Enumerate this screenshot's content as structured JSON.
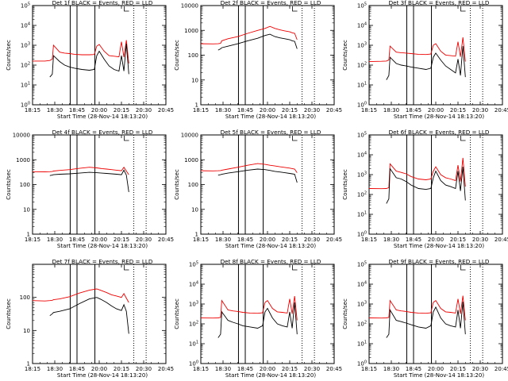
{
  "colors": {
    "events": "#000000",
    "lld": "#ee0000",
    "axes": "#000000",
    "background": "#ffffff"
  },
  "common": {
    "xlabel": "Start Time (28-Nov-14 18:13:20)",
    "ylabel": "Counts/sec",
    "x_ticks": [
      "18:15",
      "18:30",
      "18:45",
      "20:00",
      "20:15",
      "20:30",
      "20:45"
    ]
  },
  "chart_data": [
    {
      "type": "line",
      "title": "Det 1f  BLACK = Events, RED = LLD",
      "yscale": "log",
      "ylim": [
        1,
        100000
      ],
      "y_tick_labels": [
        "10^0",
        "10^1",
        "10^2",
        "10^3",
        "10^4",
        "10^5"
      ],
      "xlim": [
        0,
        108
      ],
      "x": [
        0,
        10,
        14,
        16,
        17,
        22,
        26,
        30,
        34,
        40,
        46,
        50,
        52,
        54,
        58,
        62,
        66,
        70,
        72,
        74,
        76,
        78
      ],
      "series": [
        {
          "name": "BLACK = Events",
          "values": [
            null,
            null,
            25,
            35,
            300,
            150,
            100,
            80,
            70,
            60,
            55,
            60,
            300,
            500,
            200,
            90,
            60,
            50,
            300,
            50,
            1200,
            35
          ]
        },
        {
          "name": "RED = LLD",
          "values": [
            160,
            160,
            170,
            200,
            1000,
            450,
            400,
            380,
            350,
            330,
            330,
            340,
            900,
            1100,
            500,
            300,
            280,
            260,
            1500,
            250,
            1800,
            120
          ]
        }
      ]
    },
    {
      "type": "line",
      "title": "Det 2f  BLACK = Events, RED = LLD",
      "yscale": "log",
      "ylim": [
        1,
        10000
      ],
      "y_tick_labels": [
        "1",
        "10",
        "100",
        "1000",
        "10000"
      ],
      "xlim": [
        0,
        108
      ],
      "x": [
        0,
        10,
        14,
        16,
        17,
        22,
        30,
        38,
        46,
        52,
        56,
        60,
        64,
        68,
        72,
        74,
        76,
        78
      ],
      "series": [
        {
          "name": "BLACK = Events",
          "values": [
            null,
            null,
            160,
            180,
            200,
            230,
            290,
            380,
            480,
            620,
            700,
            560,
            500,
            460,
            420,
            380,
            360,
            180
          ]
        },
        {
          "name": "RED = LLD",
          "values": [
            290,
            285,
            290,
            300,
            380,
            460,
            560,
            760,
            1000,
            1200,
            1450,
            1200,
            1050,
            950,
            870,
            800,
            760,
            420
          ]
        }
      ]
    },
    {
      "type": "line",
      "title": "Det 3f  BLACK = Events, RED = LLD",
      "yscale": "log",
      "ylim": [
        1,
        100000
      ],
      "y_tick_labels": [
        "10^0",
        "10^1",
        "10^2",
        "10^3",
        "10^4",
        "10^5"
      ],
      "xlim": [
        0,
        108
      ],
      "x": [
        0,
        10,
        14,
        16,
        17,
        22,
        26,
        30,
        34,
        40,
        46,
        50,
        52,
        54,
        58,
        62,
        66,
        70,
        72,
        74,
        76,
        78
      ],
      "series": [
        {
          "name": "BLACK = Events",
          "values": [
            null,
            null,
            18,
            30,
            250,
            120,
            100,
            90,
            80,
            70,
            60,
            70,
            250,
            400,
            180,
            90,
            60,
            40,
            200,
            30,
            900,
            25
          ]
        },
        {
          "name": "RED = LLD",
          "values": [
            150,
            155,
            160,
            180,
            900,
            450,
            420,
            400,
            380,
            350,
            340,
            360,
            1000,
            1200,
            500,
            320,
            300,
            280,
            1500,
            260,
            2500,
            150
          ]
        }
      ]
    },
    {
      "type": "line",
      "title": "Det 4f  BLACK = Events, RED = LLD",
      "yscale": "log",
      "ylim": [
        1,
        10000
      ],
      "y_tick_labels": [
        "1",
        "10",
        "100",
        "1000",
        "10000"
      ],
      "xlim": [
        0,
        108
      ],
      "x": [
        0,
        10,
        14,
        16,
        17,
        22,
        30,
        38,
        46,
        52,
        56,
        60,
        64,
        68,
        72,
        74,
        76,
        78
      ],
      "series": [
        {
          "name": "BLACK = Events",
          "values": [
            null,
            null,
            230,
            240,
            250,
            260,
            270,
            290,
            310,
            300,
            290,
            280,
            270,
            260,
            250,
            380,
            240,
            50
          ]
        },
        {
          "name": "RED = LLD",
          "values": [
            330,
            325,
            330,
            335,
            350,
            370,
            400,
            450,
            500,
            470,
            440,
            420,
            400,
            380,
            360,
            500,
            350,
            250
          ]
        }
      ]
    },
    {
      "type": "line",
      "title": "Det 5f  BLACK = Events, RED = LLD",
      "yscale": "log",
      "ylim": [
        1,
        10000
      ],
      "y_tick_labels": [
        "1",
        "10",
        "100",
        "1000",
        "10000"
      ],
      "xlim": [
        0,
        108
      ],
      "x": [
        0,
        10,
        14,
        16,
        17,
        22,
        30,
        38,
        46,
        52,
        56,
        60,
        64,
        68,
        72,
        74,
        76,
        78
      ],
      "series": [
        {
          "name": "BLACK = Events",
          "values": [
            null,
            null,
            240,
            250,
            260,
            290,
            330,
            380,
            420,
            400,
            370,
            340,
            320,
            300,
            280,
            270,
            260,
            120
          ]
        },
        {
          "name": "RED = LLD",
          "values": [
            360,
            355,
            360,
            365,
            380,
            420,
            500,
            600,
            700,
            650,
            600,
            560,
            520,
            490,
            460,
            440,
            420,
            300
          ]
        }
      ]
    },
    {
      "type": "line",
      "title": "Det 6f  BLACK = Events, RED = LLD",
      "yscale": "log",
      "ylim": [
        1,
        100000
      ],
      "y_tick_labels": [
        "10^0",
        "10^1",
        "10^2",
        "10^3",
        "10^4",
        "10^5"
      ],
      "xlim": [
        0,
        108
      ],
      "x": [
        0,
        10,
        14,
        16,
        17,
        22,
        26,
        30,
        34,
        40,
        46,
        50,
        52,
        54,
        58,
        62,
        66,
        70,
        72,
        74,
        76,
        78
      ],
      "series": [
        {
          "name": "BLACK = Events",
          "values": [
            null,
            null,
            35,
            60,
            2000,
            700,
            600,
            450,
            300,
            200,
            180,
            200,
            700,
            1500,
            500,
            300,
            250,
            200,
            1500,
            150,
            2500,
            50
          ]
        },
        {
          "name": "RED = LLD",
          "values": [
            200,
            195,
            200,
            220,
            3500,
            1500,
            1300,
            1100,
            800,
            600,
            550,
            600,
            1500,
            2500,
            1000,
            700,
            600,
            500,
            3000,
            450,
            7000,
            250
          ]
        }
      ]
    },
    {
      "type": "line",
      "title": "Det 7f  BLACK = Events, RED = LLD",
      "yscale": "log",
      "ylim": [
        1,
        1000
      ],
      "y_tick_labels": [
        "1",
        "10",
        "100"
      ],
      "xlim": [
        0,
        108
      ],
      "x": [
        0,
        10,
        14,
        16,
        17,
        22,
        30,
        38,
        46,
        52,
        56,
        60,
        64,
        68,
        72,
        74,
        76,
        78
      ],
      "series": [
        {
          "name": "BLACK = Events",
          "values": [
            null,
            null,
            28,
            32,
            35,
            38,
            45,
            65,
            90,
            100,
            85,
            70,
            55,
            45,
            40,
            60,
            38,
            8
          ]
        },
        {
          "name": "RED = LLD",
          "values": [
            80,
            78,
            80,
            82,
            85,
            90,
            105,
            135,
            165,
            180,
            160,
            140,
            120,
            110,
            100,
            130,
            95,
            70
          ]
        }
      ]
    },
    {
      "type": "line",
      "title": "Det 8f  BLACK = Events, RED = LLD",
      "yscale": "log",
      "ylim": [
        1,
        100000
      ],
      "y_tick_labels": [
        "10^0",
        "10^1",
        "10^2",
        "10^3",
        "10^4",
        "10^5"
      ],
      "xlim": [
        0,
        108
      ],
      "x": [
        0,
        10,
        14,
        16,
        17,
        22,
        26,
        30,
        34,
        40,
        46,
        50,
        52,
        54,
        58,
        62,
        66,
        70,
        72,
        74,
        76,
        78
      ],
      "series": [
        {
          "name": "BLACK = Events",
          "values": [
            null,
            null,
            20,
            30,
            400,
            150,
            120,
            100,
            80,
            70,
            60,
            80,
            400,
            600,
            200,
            100,
            80,
            70,
            400,
            60,
            1200,
            30
          ]
        },
        {
          "name": "RED = LLD",
          "values": [
            200,
            195,
            200,
            210,
            1500,
            500,
            450,
            420,
            380,
            350,
            340,
            360,
            1200,
            1500,
            600,
            400,
            380,
            350,
            1800,
            320,
            2500,
            150
          ]
        }
      ]
    },
    {
      "type": "line",
      "title": "Det 9f  BLACK = Events, RED = LLD",
      "yscale": "log",
      "ylim": [
        1,
        100000
      ],
      "y_tick_labels": [
        "10^0",
        "10^1",
        "10^2",
        "10^3",
        "10^4",
        "10^5"
      ],
      "xlim": [
        0,
        108
      ],
      "x": [
        0,
        10,
        14,
        16,
        17,
        22,
        26,
        30,
        34,
        40,
        46,
        50,
        52,
        54,
        58,
        62,
        66,
        70,
        72,
        74,
        76,
        78
      ],
      "series": [
        {
          "name": "BLACK = Events",
          "values": [
            null,
            null,
            20,
            30,
            500,
            150,
            130,
            110,
            90,
            70,
            60,
            80,
            400,
            700,
            200,
            100,
            80,
            70,
            500,
            60,
            1300,
            30
          ]
        },
        {
          "name": "RED = LLD",
          "values": [
            200,
            195,
            200,
            210,
            1500,
            500,
            450,
            420,
            380,
            350,
            340,
            360,
            1200,
            1500,
            600,
            400,
            380,
            350,
            1800,
            320,
            2600,
            150
          ]
        }
      ]
    }
  ]
}
